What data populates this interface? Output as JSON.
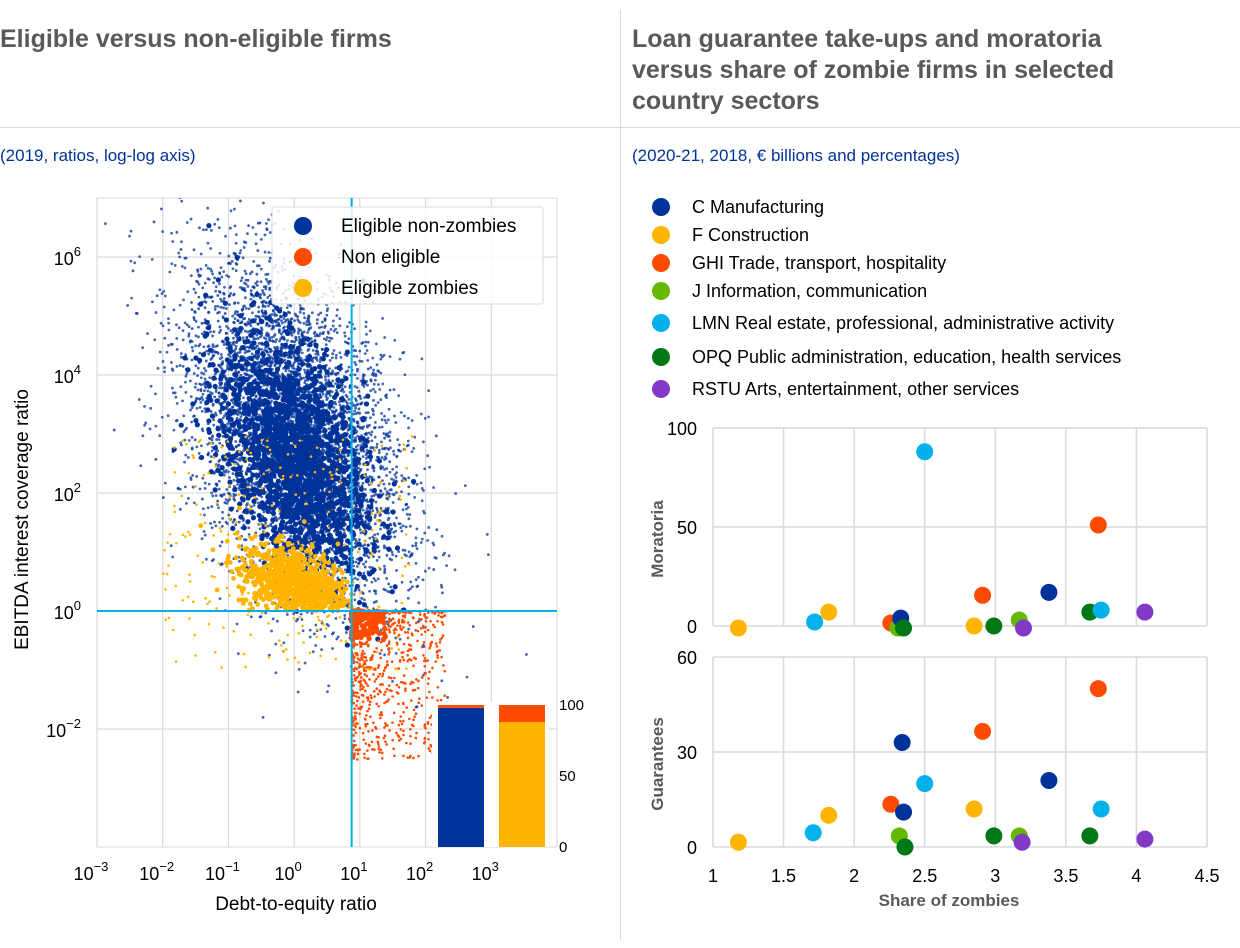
{
  "left": {
    "title": "Eligible versus non-eligible firms",
    "subtitle": "(2019, ratios, log-log axis)"
  },
  "right": {
    "title_lines": [
      "Loan guarantee take-ups and moratoria",
      "versus share of zombie firms in selected",
      "country sectors"
    ],
    "subtitle": "(2020-21, 2018, € billions and percentages)"
  },
  "colors": {
    "navy": "#003399",
    "yellow": "#ffb400",
    "orange": "#ff4b00",
    "green": "#65b800",
    "cyan": "#00b1ea",
    "darkgreen": "#007816",
    "purple": "#8139c6",
    "reference_line": "#00aee8"
  },
  "chart_data": [
    {
      "type": "scatter",
      "title": "Eligible versus non-eligible firms",
      "subtitle": "(2019, ratios, log-log axis)",
      "xlabel": "Debt-to-equity ratio",
      "ylabel": "EBITDA interest coverage ratio",
      "xscale": "log",
      "yscale": "log",
      "xlim": [
        0.001,
        10000
      ],
      "ylim": [
        0.0001,
        10000000
      ],
      "x_ticks": [
        {
          "value": 0.001,
          "base": "10",
          "exp": "−3"
        },
        {
          "value": 0.01,
          "base": "10",
          "exp": "−2"
        },
        {
          "value": 0.1,
          "base": "10",
          "exp": "−1"
        },
        {
          "value": 1,
          "base": "10",
          "exp": "0"
        },
        {
          "value": 10,
          "base": "10",
          "exp": "1"
        },
        {
          "value": 100,
          "base": "10",
          "exp": "2"
        },
        {
          "value": 1000,
          "base": "10",
          "exp": "3"
        }
      ],
      "y_ticks": [
        {
          "value": 0.01,
          "base": "10",
          "exp": "−2"
        },
        {
          "value": 1,
          "base": "10",
          "exp": "0"
        },
        {
          "value": 100,
          "base": "10",
          "exp": "2"
        },
        {
          "value": 10000,
          "base": "10",
          "exp": "4"
        },
        {
          "value": 1000000,
          "base": "10",
          "exp": "6"
        }
      ],
      "reference_lines": {
        "x": 7.5,
        "y": 1
      },
      "legend_position": "top-right",
      "series": [
        {
          "name": "Eligible non-zombies",
          "color": "#003399",
          "clusters": [
            {
              "center_x": 1,
              "center_y": 1000,
              "spread_decades_x": 1.1,
              "spread_decades_y": 1.6
            }
          ]
        },
        {
          "name": "Non eligible",
          "color": "#ff4b00",
          "region": {
            "x_min": 7.5,
            "x_max": 200,
            "y_min": 0.003,
            "y_max": 1
          }
        },
        {
          "name": "Eligible zombies",
          "color": "#ffb400",
          "clusters": [
            {
              "center_x": 1,
              "center_y": 3,
              "spread_decades_x": 0.7,
              "spread_decades_y": 0.5
            }
          ]
        }
      ],
      "inset": {
        "type": "stacked_bar",
        "ylim": [
          0,
          100
        ],
        "y_ticks": [
          "0",
          "50",
          "100"
        ],
        "bars": [
          {
            "segments": [
              {
                "value": 98,
                "color": "#003399"
              },
              {
                "value": 2,
                "color": "#ff4b00"
              }
            ]
          },
          {
            "segments": [
              {
                "value": 88,
                "color": "#ffb400"
              },
              {
                "value": 12,
                "color": "#ff4b00"
              }
            ]
          }
        ]
      }
    },
    {
      "type": "scatter",
      "title": "Loan guarantee take-ups and moratoria versus share of zombie firms in selected country sectors",
      "subtitle": "(2020-21, 2018, € billions and percentages)",
      "xlabel": "Share of zombies",
      "xlim": [
        1,
        4.5
      ],
      "x_ticks": [
        "1",
        "1.5",
        "2",
        "2.5",
        "3",
        "3.5",
        "4",
        "4.5"
      ],
      "series_legend": [
        {
          "name": "C Manufacturing",
          "color": "#003399"
        },
        {
          "name": "F Construction",
          "color": "#ffb400"
        },
        {
          "name": "GHI Trade, transport, hospitality",
          "color": "#ff4b00"
        },
        {
          "name": "J Information, communication",
          "color": "#65b800"
        },
        {
          "name": "LMN Real estate, professional, administrative activity",
          "color": "#00b1ea"
        },
        {
          "name": "OPQ Public administration, education, health services",
          "color": "#007816"
        },
        {
          "name": "RSTU Arts, entertainment, other services",
          "color": "#8139c6"
        }
      ],
      "panels": [
        {
          "ylabel": "Moratoria",
          "ylim": [
            0,
            100
          ],
          "y_ticks": [
            "0",
            "50",
            "100"
          ],
          "points": [
            {
              "x": 1.18,
              "y": -1,
              "color": "#ffb400"
            },
            {
              "x": 1.72,
              "y": 2,
              "color": "#00b1ea"
            },
            {
              "x": 1.82,
              "y": 7,
              "color": "#ffb400"
            },
            {
              "x": 2.26,
              "y": 1.5,
              "color": "#ff4b00"
            },
            {
              "x": 2.31,
              "y": -1,
              "color": "#65b800"
            },
            {
              "x": 2.33,
              "y": 4,
              "color": "#003399"
            },
            {
              "x": 2.35,
              "y": -1,
              "color": "#007816"
            },
            {
              "x": 2.5,
              "y": 88,
              "color": "#00b1ea"
            },
            {
              "x": 2.85,
              "y": 0,
              "color": "#ffb400"
            },
            {
              "x": 2.91,
              "y": 15.5,
              "color": "#ff4b00"
            },
            {
              "x": 2.99,
              "y": 0,
              "color": "#007816"
            },
            {
              "x": 3.17,
              "y": 3,
              "color": "#65b800"
            },
            {
              "x": 3.2,
              "y": -1,
              "color": "#8139c6"
            },
            {
              "x": 3.38,
              "y": 17,
              "color": "#003399"
            },
            {
              "x": 3.67,
              "y": 7,
              "color": "#007816"
            },
            {
              "x": 3.73,
              "y": 51,
              "color": "#ff4b00"
            },
            {
              "x": 3.75,
              "y": 8,
              "color": "#00b1ea"
            },
            {
              "x": 4.06,
              "y": 7,
              "color": "#8139c6"
            }
          ]
        },
        {
          "ylabel": "Guarantees",
          "ylim": [
            0,
            60
          ],
          "y_ticks": [
            "0",
            "30",
            "60"
          ],
          "points": [
            {
              "x": 1.18,
              "y": 1.5,
              "color": "#ffb400"
            },
            {
              "x": 1.71,
              "y": 4.5,
              "color": "#00b1ea"
            },
            {
              "x": 1.82,
              "y": 10,
              "color": "#ffb400"
            },
            {
              "x": 2.26,
              "y": 13.5,
              "color": "#ff4b00"
            },
            {
              "x": 2.32,
              "y": 3.5,
              "color": "#65b800"
            },
            {
              "x": 2.34,
              "y": 33,
              "color": "#003399"
            },
            {
              "x": 2.35,
              "y": 11,
              "color": "#003399"
            },
            {
              "x": 2.36,
              "y": 0,
              "color": "#007816"
            },
            {
              "x": 2.5,
              "y": 20,
              "color": "#00b1ea"
            },
            {
              "x": 2.85,
              "y": 12,
              "color": "#ffb400"
            },
            {
              "x": 2.91,
              "y": 36.5,
              "color": "#ff4b00"
            },
            {
              "x": 2.99,
              "y": 3.5,
              "color": "#007816"
            },
            {
              "x": 3.17,
              "y": 3.5,
              "color": "#65b800"
            },
            {
              "x": 3.19,
              "y": 1.5,
              "color": "#8139c6"
            },
            {
              "x": 3.38,
              "y": 21,
              "color": "#003399"
            },
            {
              "x": 3.67,
              "y": 3.5,
              "color": "#007816"
            },
            {
              "x": 3.73,
              "y": 50,
              "color": "#ff4b00"
            },
            {
              "x": 3.75,
              "y": 12,
              "color": "#00b1ea"
            },
            {
              "x": 4.06,
              "y": 2.5,
              "color": "#8139c6"
            }
          ]
        }
      ]
    }
  ]
}
